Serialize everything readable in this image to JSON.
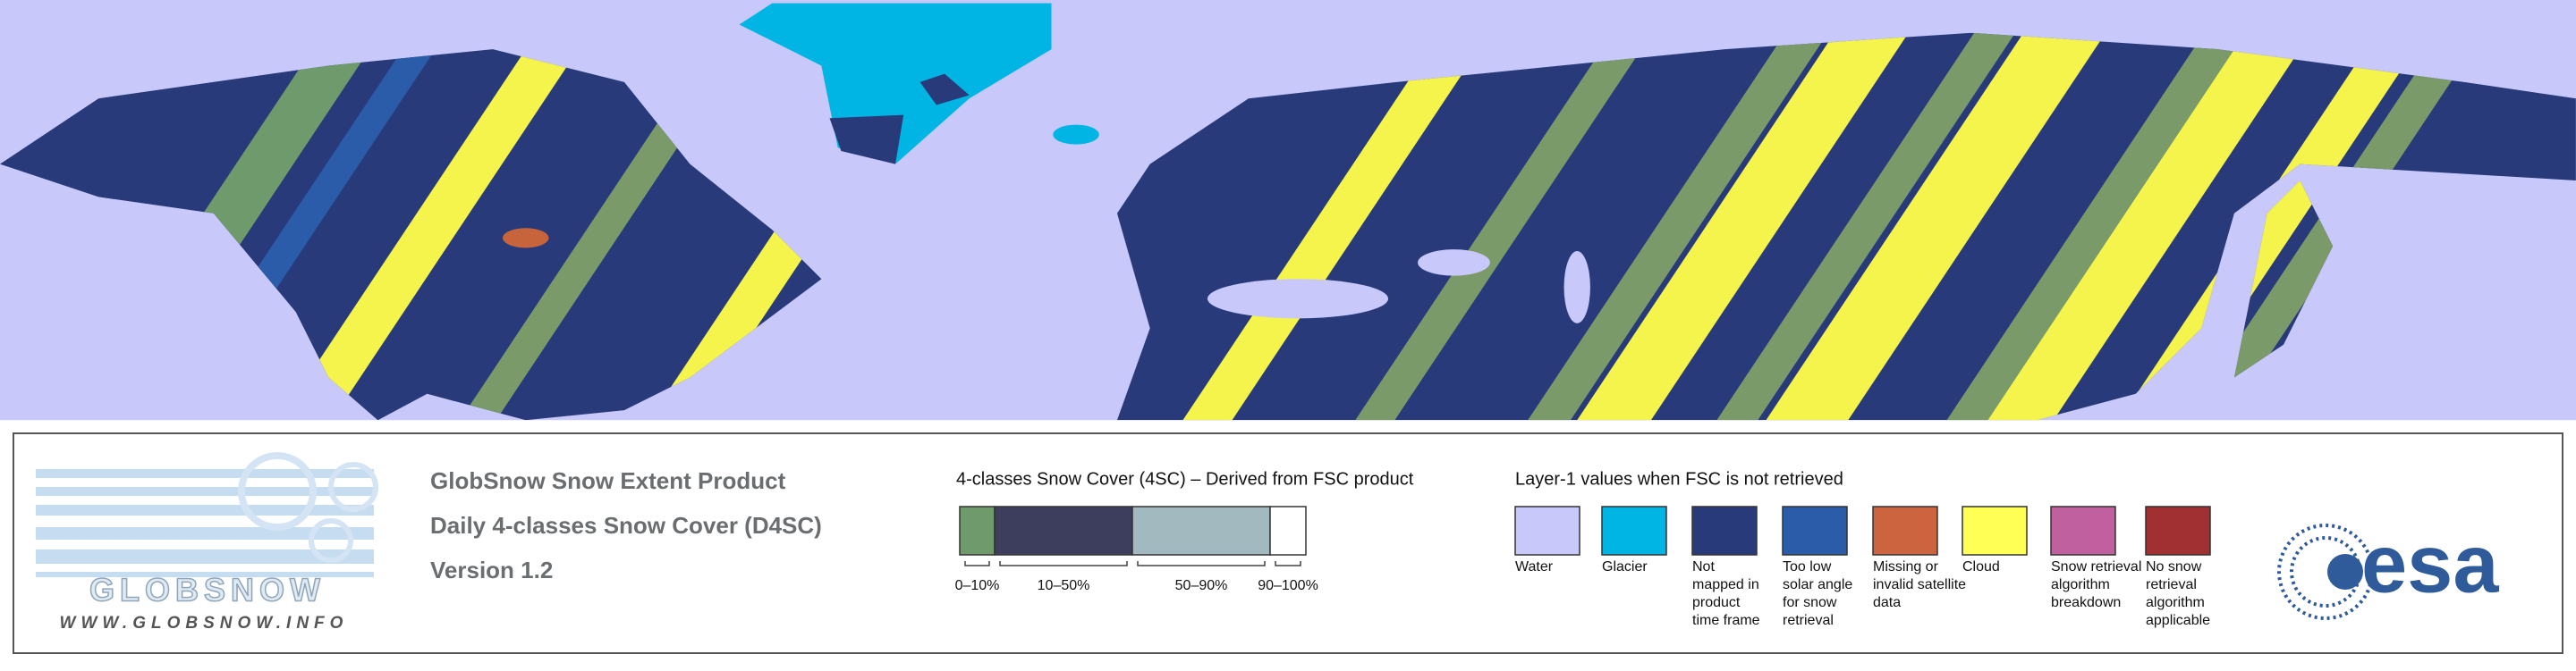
{
  "logo": {
    "name": "GLOBSNOW",
    "url": "WWW.GLOBSNOW.INFO"
  },
  "product": {
    "lines": [
      "GlobSnow Snow Extent Product",
      "Daily 4-classes Snow Cover (D4SC)",
      "Version 1.2"
    ]
  },
  "snow_cover_legend": {
    "title": "4-classes Snow Cover (4SC) – Derived from FSC product",
    "classes": [
      {
        "label": "0–10%",
        "color": "#6f9a6c"
      },
      {
        "label": "10–50%",
        "color": "#3d3e5e"
      },
      {
        "label": "50–90%",
        "color": "#a2b9c0"
      },
      {
        "label": "90–100%",
        "color": "#ffffff"
      }
    ]
  },
  "layer1_legend": {
    "title": "Layer-1 values when FSC is not retrieved",
    "items": [
      {
        "lines": [
          "Water"
        ],
        "color": "#c8c8fa"
      },
      {
        "lines": [
          "Glacier"
        ],
        "color": "#00b4e4"
      },
      {
        "lines": [
          "Not",
          "mapped in",
          "product",
          "time frame"
        ],
        "color": "#283a7a"
      },
      {
        "lines": [
          "Too low",
          "solar angle",
          "for snow",
          "retrieval"
        ],
        "color": "#2a5caa"
      },
      {
        "lines": [
          "Missing or",
          "invalid satellite",
          "data"
        ],
        "color": "#cc6440"
      },
      {
        "lines": [
          "Cloud"
        ],
        "color": "#ffff55"
      },
      {
        "lines": [
          "Snow retrieval",
          "algorithm",
          "breakdown"
        ],
        "color": "#c0609e"
      },
      {
        "lines": [
          "No snow",
          "retrieval",
          "algorithm",
          "applicable"
        ],
        "color": "#a03032"
      }
    ]
  },
  "agency": {
    "name": "esa"
  }
}
